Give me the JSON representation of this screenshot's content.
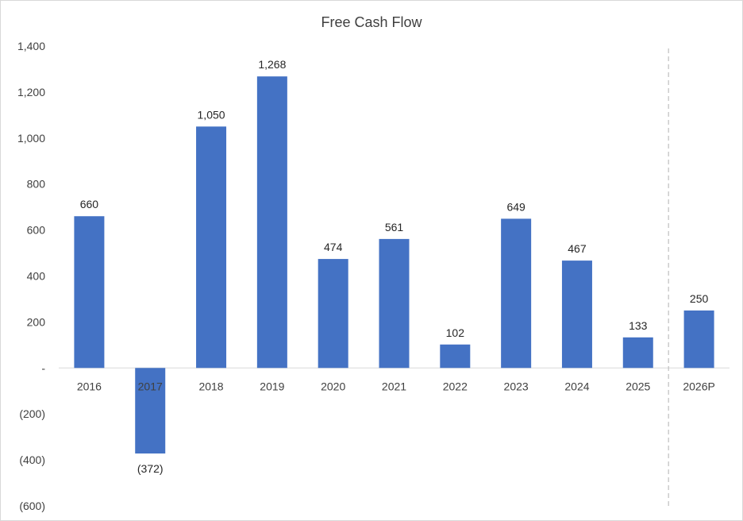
{
  "chart_data": {
    "type": "bar",
    "title": "Free Cash Flow",
    "categories": [
      "2016",
      "2017",
      "2018",
      "2019",
      "2020",
      "2021",
      "2022",
      "2023",
      "2024",
      "2025",
      "2026P"
    ],
    "values": [
      660,
      -372,
      1050,
      1268,
      474,
      561,
      102,
      649,
      467,
      133,
      250
    ],
    "data_labels": [
      "660",
      "(372)",
      "1,050",
      "1,268",
      "474",
      "561",
      "102",
      "649",
      "467",
      "133",
      "250"
    ],
    "ylim": [
      -600,
      1400
    ],
    "yticks": [
      1400,
      1200,
      1000,
      800,
      600,
      400,
      200,
      0,
      -200,
      -400,
      -600
    ],
    "ytick_labels": [
      "1,400",
      "1,200",
      "1,000",
      "800",
      "600",
      "400",
      "200",
      "-",
      "(200)",
      "(400)",
      "(600)"
    ],
    "xlabel": "",
    "ylabel": "",
    "grid": false,
    "legend": "none",
    "bar_color": "#4472C4",
    "projection_divider": "dashed line before 2026P"
  }
}
